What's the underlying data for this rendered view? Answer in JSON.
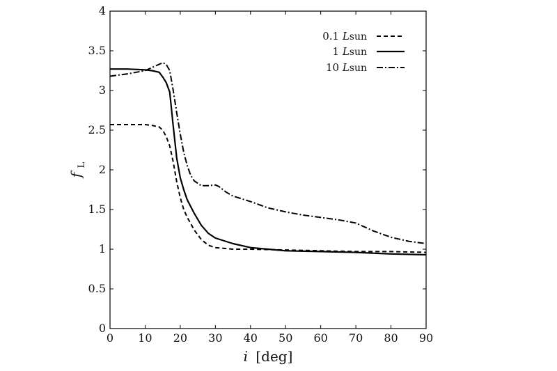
{
  "chart_data": {
    "type": "line",
    "xlabel": {
      "symbol": "i",
      "unit": "[deg]"
    },
    "ylabel": {
      "symbol": "f",
      "subscript": "L"
    },
    "xlim": [
      0,
      90
    ],
    "ylim": [
      0,
      4
    ],
    "xticks": [
      "0",
      "10",
      "20",
      "30",
      "40",
      "50",
      "60",
      "70",
      "80",
      "90"
    ],
    "yticks": [
      "0",
      "0.5",
      "1",
      "1.5",
      "2",
      "2.5",
      "3",
      "3.5",
      "4"
    ],
    "grid": false,
    "legend_position": "top-right",
    "series": [
      {
        "name": "0.1 Lsun",
        "legend_value": "0.1",
        "legend_unit": "L",
        "legend_unit_sub": "sun",
        "dash": "dashed",
        "x": [
          0,
          5,
          10,
          12,
          14,
          15,
          16,
          17,
          18,
          19,
          20,
          21,
          22,
          24,
          26,
          28,
          30,
          35,
          40,
          50,
          60,
          70,
          80,
          90
        ],
        "y": [
          2.57,
          2.57,
          2.57,
          2.56,
          2.54,
          2.5,
          2.42,
          2.3,
          2.1,
          1.85,
          1.65,
          1.5,
          1.4,
          1.24,
          1.12,
          1.05,
          1.02,
          1.0,
          1.0,
          0.99,
          0.98,
          0.97,
          0.97,
          0.96
        ]
      },
      {
        "name": "1 Lsun",
        "legend_value": "1",
        "legend_unit": "L",
        "legend_unit_sub": "sun",
        "dash": "solid",
        "x": [
          0,
          5,
          10,
          12,
          14,
          15,
          16,
          17,
          18,
          19,
          20,
          21,
          22,
          24,
          26,
          28,
          30,
          35,
          40,
          50,
          60,
          70,
          80,
          90
        ],
        "y": [
          3.27,
          3.27,
          3.26,
          3.25,
          3.23,
          3.17,
          3.1,
          2.98,
          2.55,
          2.15,
          1.9,
          1.75,
          1.62,
          1.45,
          1.3,
          1.2,
          1.14,
          1.07,
          1.02,
          0.98,
          0.97,
          0.96,
          0.94,
          0.93
        ]
      },
      {
        "name": "10 Lsun",
        "legend_value": "10",
        "legend_unit": "L",
        "legend_unit_sub": "sun",
        "dash": "dash-dot",
        "x": [
          0,
          5,
          10,
          12,
          14,
          15,
          16,
          17,
          18,
          19,
          20,
          21,
          22,
          23,
          24,
          26,
          28,
          30,
          31,
          33,
          35,
          40,
          45,
          50,
          55,
          60,
          65,
          70,
          75,
          80,
          85,
          90
        ],
        "y": [
          3.18,
          3.21,
          3.25,
          3.29,
          3.33,
          3.35,
          3.33,
          3.25,
          3.0,
          2.72,
          2.45,
          2.22,
          2.05,
          1.93,
          1.86,
          1.8,
          1.8,
          1.81,
          1.79,
          1.72,
          1.67,
          1.6,
          1.52,
          1.47,
          1.43,
          1.4,
          1.37,
          1.33,
          1.23,
          1.15,
          1.1,
          1.07
        ]
      }
    ]
  }
}
